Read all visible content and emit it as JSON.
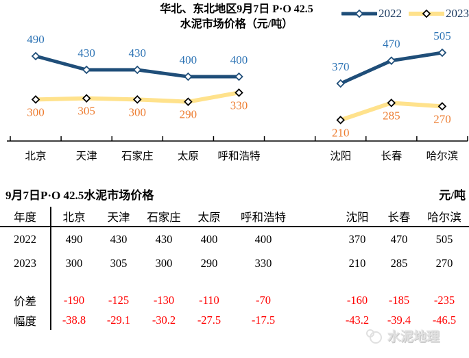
{
  "chart": {
    "title_line1": "华北、东北地区9月7日  P·O 42.5",
    "title_line2": "水泥市场价格（元/吨）"
  },
  "chart_data": {
    "type": "line",
    "title": "华北、东北地区9月7日 P·O 42.5 水泥市场价格（元/吨）",
    "unit": "元/吨",
    "categories": [
      "北京",
      "天津",
      "石家庄",
      "太原",
      "呼和浩特",
      "沈阳",
      "长春",
      "哈尔滨"
    ],
    "gap_after_index": 4,
    "grid": false,
    "legend_position": "top-right",
    "value_range_hint": [
      120,
      505
    ],
    "series": [
      {
        "name": "2022",
        "values": [
          490,
          430,
          430,
          400,
          400,
          370,
          470,
          505
        ],
        "line_color": "#1F4E79",
        "marker_color": "#1F4E79",
        "label_color": "#2E74B5",
        "marker": "diamond"
      },
      {
        "name": "2023",
        "values": [
          300,
          305,
          300,
          290,
          330,
          210,
          285,
          270
        ],
        "line_color": "#FFE28C",
        "marker_color": "#000000",
        "label_color": "#ED7D31",
        "marker": "diamond"
      }
    ]
  },
  "table": {
    "title": "9月7日P·O 42.5水泥市场价格",
    "unit": "元/吨",
    "corner_label": "年度",
    "columns": [
      "北京",
      "天津",
      "石家庄",
      "太原",
      "呼和浩特",
      "沈阳",
      "长春",
      "哈尔滨"
    ],
    "rows": [
      {
        "label": "2022",
        "values": [
          "490",
          "430",
          "430",
          "400",
          "400",
          "370",
          "470",
          "505"
        ],
        "value_color": "#000000"
      },
      {
        "label": "2023",
        "values": [
          "300",
          "305",
          "300",
          "290",
          "330",
          "210",
          "285",
          "270"
        ],
        "value_color": "#000000"
      },
      {
        "label": "价差",
        "values": [
          "-190",
          "-125",
          "-130",
          "-110",
          "-70",
          "-160",
          "-185",
          "-235"
        ],
        "value_color": "#FF0000"
      },
      {
        "label": "幅度",
        "values": [
          "-38.8",
          "-29.1",
          "-30.2",
          "-27.5",
          "-17.5",
          "-43.2",
          "-39.4",
          "-46.5"
        ],
        "value_color": "#FF0000"
      }
    ]
  },
  "watermark": {
    "text": "水泥地理"
  },
  "colors": {
    "navy": "#1F4E79",
    "gold": "#FFE28C",
    "blue_label": "#2E74B5",
    "orange_label": "#ED7D31",
    "red_value": "#FF0000",
    "legend_text": "#17365D",
    "axis": "#000000"
  }
}
